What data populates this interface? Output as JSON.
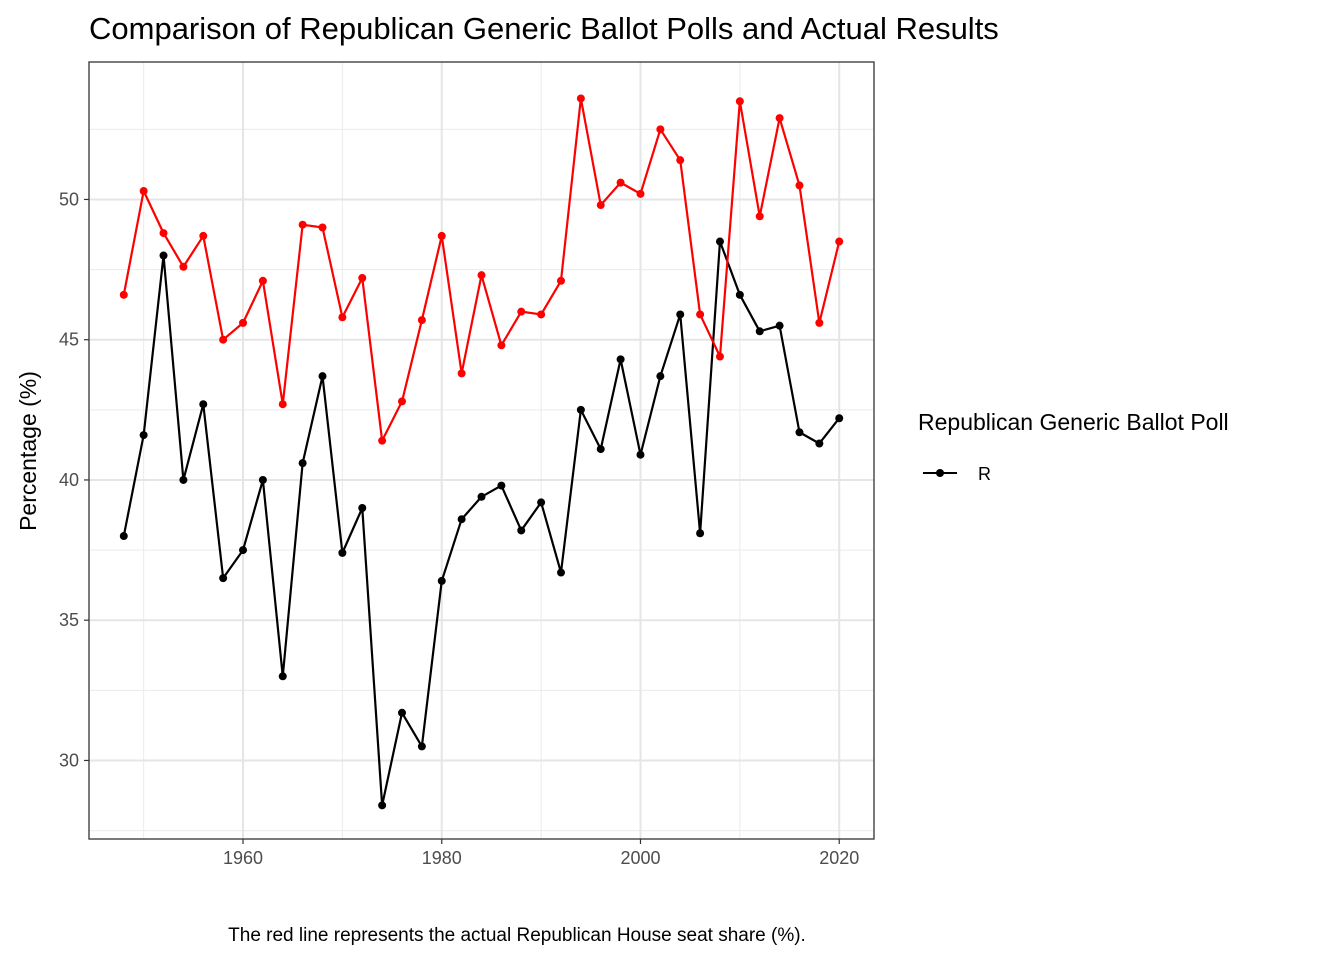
{
  "chart_data": {
    "type": "line",
    "title": "Comparison of Republican Generic Ballot Polls and Actual Results",
    "xlabel": "",
    "ylabel": "Percentage (%)",
    "xlim": [
      1944.5,
      2023.5
    ],
    "ylim": [
      27.2,
      54.9
    ],
    "x_ticks": [
      1960,
      1980,
      2000,
      2020
    ],
    "y_ticks": [
      30,
      35,
      40,
      45,
      50
    ],
    "grid": true,
    "legend": {
      "title": "Republican Generic Ballot Poll",
      "placement": "right",
      "entries": [
        "R"
      ]
    },
    "caption": "The red line represents the actual Republican House seat share (%).",
    "series": [
      {
        "name": "R",
        "color": "#000000",
        "x": [
          1948,
          1950,
          1952,
          1954,
          1956,
          1958,
          1960,
          1962,
          1964,
          1966,
          1968,
          1970,
          1972,
          1974,
          1976,
          1978,
          1980,
          1982,
          1984,
          1986,
          1988,
          1990,
          1992,
          1994,
          1996,
          1998,
          2000,
          2002,
          2004,
          2006,
          2008,
          2010,
          2012,
          2014,
          2016,
          2018,
          2020
        ],
        "values": [
          38.0,
          41.6,
          48.0,
          40.0,
          42.7,
          36.5,
          37.5,
          40.0,
          33.0,
          40.6,
          43.7,
          37.4,
          39.0,
          28.4,
          31.7,
          30.5,
          36.4,
          38.6,
          39.4,
          39.8,
          38.2,
          39.2,
          36.7,
          42.5,
          41.1,
          44.3,
          40.9,
          43.7,
          45.9,
          38.1,
          48.5,
          46.6,
          45.3,
          45.5,
          41.7,
          41.3,
          42.2
        ]
      },
      {
        "name": "",
        "color": "#ff0000",
        "x": [
          1948,
          1950,
          1952,
          1954,
          1956,
          1958,
          1960,
          1962,
          1964,
          1966,
          1968,
          1970,
          1972,
          1974,
          1976,
          1978,
          1980,
          1982,
          1984,
          1986,
          1988,
          1990,
          1992,
          1994,
          1996,
          1998,
          2000,
          2002,
          2004,
          2006,
          2008,
          2010,
          2012,
          2014,
          2016,
          2018,
          2020
        ],
        "values": [
          46.6,
          50.3,
          48.8,
          47.6,
          48.7,
          45.0,
          45.6,
          47.1,
          42.7,
          49.1,
          49.0,
          45.8,
          47.2,
          41.4,
          42.8,
          45.7,
          48.7,
          43.8,
          47.3,
          44.8,
          46.0,
          45.9,
          47.1,
          53.6,
          49.8,
          50.6,
          50.2,
          52.5,
          51.4,
          45.9,
          44.4,
          53.5,
          49.4,
          52.9,
          50.5,
          45.6,
          48.5
        ]
      }
    ]
  }
}
